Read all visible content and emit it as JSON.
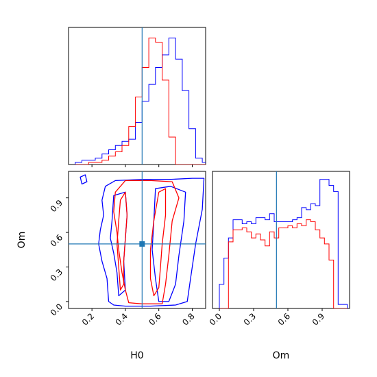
{
  "colors": {
    "series_a": "#0000ff",
    "series_b": "#ff0000",
    "truth": "#1f77b4",
    "frame": "#000000"
  },
  "chart_data": [
    {
      "panel": "H0 marginal (top-left)",
      "type": "step-histogram",
      "xlim": [
        0.06,
        0.88
      ],
      "bin_edges": [
        0.1,
        0.14,
        0.18,
        0.22,
        0.26,
        0.3,
        0.34,
        0.38,
        0.42,
        0.46,
        0.5,
        0.54,
        0.58,
        0.62,
        0.66,
        0.7,
        0.74,
        0.78,
        0.82,
        0.86,
        0.9
      ],
      "series": [
        {
          "color_key": "series_a",
          "values": [
            1,
            2,
            2,
            3,
            5,
            7,
            9,
            11,
            12,
            20,
            30,
            38,
            46,
            52,
            60,
            50,
            35,
            17,
            3,
            1
          ]
        },
        {
          "color_key": "series_b",
          "values": [
            0,
            0,
            1,
            1,
            2,
            4,
            6,
            9,
            18,
            32,
            46,
            60,
            58,
            40,
            13,
            0,
            0,
            0,
            0,
            0
          ]
        }
      ],
      "xticks": [
        0.2,
        0.4,
        0.6,
        0.8
      ],
      "truth": 0.5,
      "ylim": [
        0,
        65
      ]
    },
    {
      "panel": "Om marginal (bottom-right)",
      "type": "step-histogram",
      "xlim": [
        -0.06,
        1.14
      ],
      "bin_edges": [
        0.0,
        0.04,
        0.08,
        0.12,
        0.16,
        0.2,
        0.24,
        0.28,
        0.32,
        0.36,
        0.4,
        0.44,
        0.48,
        0.52,
        0.56,
        0.6,
        0.64,
        0.68,
        0.72,
        0.76,
        0.8,
        0.84,
        0.88,
        0.92,
        0.96,
        1.0,
        1.04,
        1.08,
        1.12
      ],
      "series": [
        {
          "color_key": "series_a",
          "values": [
            12,
            25,
            35,
            44,
            44,
            42,
            43,
            42,
            45,
            45,
            44,
            47,
            43,
            43,
            43,
            43,
            44,
            45,
            50,
            49,
            52,
            51,
            64,
            64,
            61,
            58,
            2,
            2
          ]
        },
        {
          "color_key": "series_b",
          "values": [
            0,
            0,
            33,
            39,
            39,
            40,
            38,
            35,
            37,
            34,
            31,
            38,
            35,
            40,
            40,
            41,
            40,
            42,
            41,
            44,
            43,
            39,
            35,
            32,
            24,
            0,
            0,
            0
          ]
        }
      ],
      "xticks": [
        0.0,
        0.3,
        0.6,
        0.9
      ],
      "xlabel": "Om",
      "truth": 0.5,
      "ylim": [
        0,
        68
      ]
    },
    {
      "panel": "H0 vs Om joint (bottom-left)",
      "type": "contour",
      "xlim": [
        0.06,
        0.88
      ],
      "ylim": [
        -0.06,
        1.13
      ],
      "xticks": [
        0.2,
        0.4,
        0.6,
        0.8
      ],
      "yticks": [
        0.0,
        0.3,
        0.6,
        0.9
      ],
      "xlabel": "H0",
      "ylabel": "Om",
      "truth": [
        0.5,
        0.5
      ],
      "contours": [
        {
          "color_key": "series_a",
          "level": "outer",
          "points": [
            [
              0.28,
              1.0
            ],
            [
              0.34,
              1.05
            ],
            [
              0.5,
              1.06
            ],
            [
              0.66,
              1.06
            ],
            [
              0.8,
              1.07
            ],
            [
              0.87,
              1.07
            ],
            [
              0.86,
              0.8
            ],
            [
              0.82,
              0.5
            ],
            [
              0.79,
              0.2
            ],
            [
              0.77,
              0.0
            ],
            [
              0.7,
              -0.03
            ],
            [
              0.55,
              -0.04
            ],
            [
              0.4,
              -0.04
            ],
            [
              0.33,
              -0.03
            ],
            [
              0.3,
              0.0
            ],
            [
              0.29,
              0.2
            ],
            [
              0.26,
              0.35
            ],
            [
              0.24,
              0.5
            ],
            [
              0.25,
              0.62
            ],
            [
              0.27,
              0.75
            ],
            [
              0.26,
              0.88
            ]
          ]
        },
        {
          "color_key": "series_a",
          "level": "inner-left",
          "points": [
            [
              0.33,
              0.92
            ],
            [
              0.4,
              0.95
            ],
            [
              0.41,
              0.75
            ],
            [
              0.4,
              0.55
            ],
            [
              0.39,
              0.35
            ],
            [
              0.4,
              0.1
            ],
            [
              0.36,
              0.05
            ],
            [
              0.35,
              0.25
            ],
            [
              0.33,
              0.42
            ],
            [
              0.31,
              0.55
            ],
            [
              0.32,
              0.7
            ]
          ]
        },
        {
          "color_key": "series_a",
          "level": "inner-right",
          "points": [
            [
              0.58,
              0.98
            ],
            [
              0.67,
              1.0
            ],
            [
              0.76,
              0.95
            ],
            [
              0.75,
              0.7
            ],
            [
              0.72,
              0.4
            ],
            [
              0.7,
              0.15
            ],
            [
              0.66,
              0.0
            ],
            [
              0.6,
              0.0
            ],
            [
              0.58,
              0.2
            ],
            [
              0.56,
              0.45
            ],
            [
              0.57,
              0.7
            ]
          ]
        },
        {
          "color_key": "series_a",
          "level": "edge-blob",
          "points": [
            [
              0.13,
              1.08
            ],
            [
              0.16,
              1.1
            ],
            [
              0.17,
              1.04
            ],
            [
              0.14,
              1.02
            ]
          ]
        },
        {
          "color_key": "series_b",
          "level": "outer",
          "points": [
            [
              0.34,
              0.95
            ],
            [
              0.4,
              1.05
            ],
            [
              0.55,
              1.05
            ],
            [
              0.68,
              1.04
            ],
            [
              0.72,
              0.9
            ],
            [
              0.68,
              0.7
            ],
            [
              0.66,
              0.4
            ],
            [
              0.64,
              0.15
            ],
            [
              0.62,
              -0.02
            ],
            [
              0.5,
              -0.02
            ],
            [
              0.42,
              -0.01
            ],
            [
              0.4,
              0.1
            ],
            [
              0.38,
              0.25
            ],
            [
              0.36,
              0.45
            ],
            [
              0.35,
              0.6
            ],
            [
              0.33,
              0.78
            ]
          ]
        },
        {
          "color_key": "series_b",
          "level": "inner-left",
          "points": [
            [
              0.37,
              0.88
            ],
            [
              0.4,
              0.95
            ],
            [
              0.41,
              0.75
            ],
            [
              0.4,
              0.55
            ],
            [
              0.39,
              0.35
            ],
            [
              0.39,
              0.15
            ],
            [
              0.37,
              0.1
            ],
            [
              0.36,
              0.3
            ],
            [
              0.35,
              0.5
            ],
            [
              0.36,
              0.7
            ]
          ]
        },
        {
          "color_key": "series_b",
          "level": "inner-right",
          "points": [
            [
              0.6,
              0.95
            ],
            [
              0.64,
              0.98
            ],
            [
              0.64,
              0.75
            ],
            [
              0.62,
              0.5
            ],
            [
              0.61,
              0.3
            ],
            [
              0.6,
              0.12
            ],
            [
              0.57,
              0.05
            ],
            [
              0.55,
              0.2
            ],
            [
              0.55,
              0.45
            ],
            [
              0.57,
              0.7
            ]
          ]
        }
      ]
    }
  ]
}
